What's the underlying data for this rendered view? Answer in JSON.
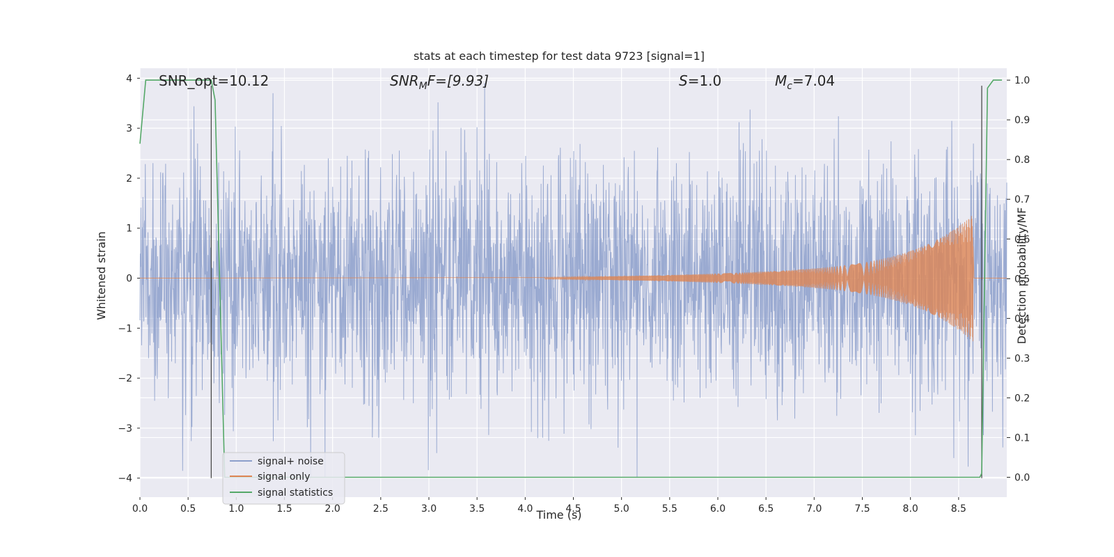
{
  "chart_data": {
    "type": "line",
    "title": "stats at each timestep for test data 9723 [signal=1]",
    "xlabel": "Time (s)",
    "ylabel_left": "Whitened strain",
    "ylabel_right": "Detection probability/MF",
    "xlim": [
      0.0,
      9.0
    ],
    "ylim_left": [
      -4.38,
      4.2
    ],
    "ylim_right": [
      -0.05,
      1.03
    ],
    "x_ticks": [
      "0.0",
      "0.5",
      "1.0",
      "1.5",
      "2.0",
      "2.5",
      "3.0",
      "3.5",
      "4.0",
      "4.5",
      "5.0",
      "5.5",
      "6.0",
      "6.5",
      "7.0",
      "7.5",
      "8.0",
      "8.5"
    ],
    "y_ticks_left": [
      "4",
      "3",
      "2",
      "1",
      "0",
      "−1",
      "−2",
      "−3",
      "−4"
    ],
    "y_ticks_right": [
      "1.0",
      "0.9",
      "0.8",
      "0.7",
      "0.6",
      "0.5",
      "0.4",
      "0.3",
      "0.2",
      "0.1",
      "0.0"
    ],
    "grid": true,
    "legend_position": "lower-left",
    "annotations": {
      "snr_opt": "SNR_opt=10.12",
      "snr_mf_main": "SNR",
      "snr_mf_sub": "M",
      "snr_mf_tail": "F=[9.93]",
      "s_sym": "S",
      "s_val": "=1.0",
      "mc_sym": "M",
      "mc_sub": "c",
      "mc_val": "=7.04"
    },
    "series": [
      {
        "name": "signal+ noise",
        "color": "#8c9fcb",
        "description_values": "whitened noise, amplitude about ±2, sampled densely from 0 to 9 s",
        "amplitude": 1.2,
        "peaks": [
          [
            1.38,
            3.7
          ],
          [
            3.58,
            3.9
          ],
          [
            1.92,
            -4.0
          ],
          [
            5.16,
            -4.05
          ],
          [
            3.08,
            -3.5
          ],
          [
            4.13,
            -3.2
          ]
        ]
      },
      {
        "name": "signal only",
        "color": "#dd8452",
        "chirp_start": 4.2,
        "chirp_end": 8.65,
        "peak_amplitude": 1.25
      },
      {
        "name": "signal statistics",
        "color": "#55a868",
        "x": [
          0.0,
          0.06,
          0.1,
          0.2,
          0.74,
          0.78,
          0.88,
          0.9,
          8.72,
          8.74,
          8.8,
          8.86,
          8.95
        ],
        "y": [
          0.84,
          1.0,
          1.0,
          1.0,
          1.0,
          0.95,
          0.0,
          0.0,
          0.0,
          0.01,
          0.98,
          1.0,
          1.0
        ]
      }
    ],
    "vertical_markers": [
      {
        "x": 0.74,
        "y_from": -4.0,
        "y_to": 3.85,
        "color": "#404040"
      },
      {
        "x": 8.74,
        "y_from": -4.0,
        "y_to": 3.85,
        "color": "#404040"
      }
    ],
    "legend": [
      {
        "label": "signal+ noise",
        "color": "#8c9fcb"
      },
      {
        "label": "signal only",
        "color": "#dd8452"
      },
      {
        "label": "signal statistics",
        "color": "#55a868"
      }
    ],
    "colors": {
      "plot_background": "#eaeaf2",
      "grid": "#ffffff"
    }
  }
}
